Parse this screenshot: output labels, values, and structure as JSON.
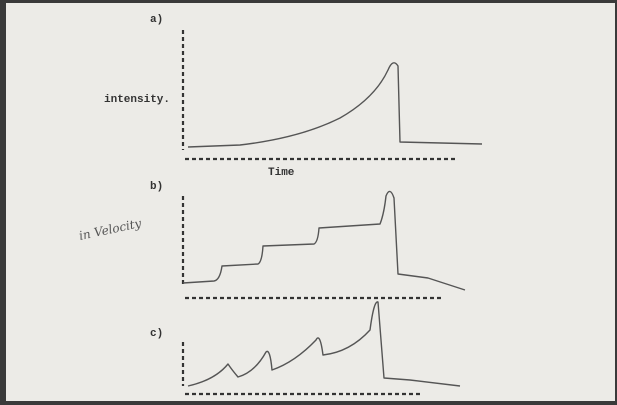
{
  "panels": [
    {
      "label": "a)",
      "y_label": "intensity.",
      "x_label": "Time"
    },
    {
      "label": "b)",
      "y_label": "in Velocity"
    },
    {
      "label": "c)"
    }
  ]
}
